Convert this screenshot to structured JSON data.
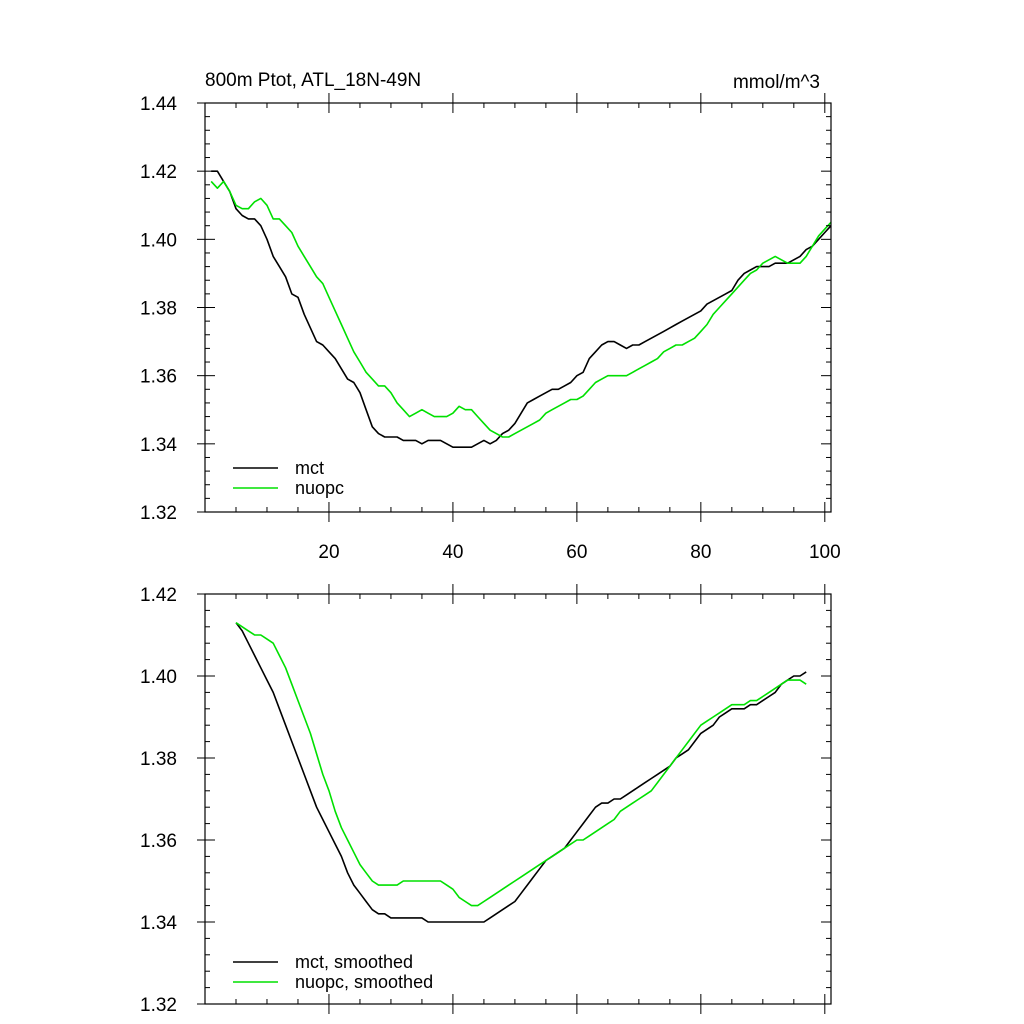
{
  "chart_data": [
    {
      "type": "line",
      "title": "800m Ptot, ATL_18N-49N",
      "units": "mmol/m^3",
      "xlim": [
        0,
        101
      ],
      "ylim": [
        1.32,
        1.44
      ],
      "x_ticks": [
        20,
        40,
        60,
        80,
        100
      ],
      "x_tick_labels": [
        "20",
        "40",
        "60",
        "80",
        "100"
      ],
      "y_ticks": [
        1.32,
        1.34,
        1.36,
        1.38,
        1.4,
        1.42,
        1.44
      ],
      "y_tick_labels": [
        "1.32",
        "1.34",
        "1.36",
        "1.38",
        "1.40",
        "1.42",
        "1.44"
      ],
      "legend_position": "bottom-left",
      "series": [
        {
          "name": "mct",
          "color": "#000000",
          "x": [
            1,
            2,
            3,
            4,
            5,
            6,
            7,
            8,
            9,
            10,
            11,
            12,
            13,
            14,
            15,
            16,
            17,
            18,
            19,
            20,
            21,
            22,
            23,
            24,
            25,
            26,
            27,
            28,
            29,
            30,
            31,
            32,
            33,
            34,
            35,
            36,
            37,
            38,
            39,
            40,
            41,
            42,
            43,
            44,
            45,
            46,
            47,
            48,
            49,
            50,
            51,
            52,
            53,
            54,
            55,
            56,
            57,
            58,
            59,
            60,
            61,
            62,
            63,
            64,
            65,
            66,
            67,
            68,
            69,
            70,
            71,
            72,
            73,
            74,
            75,
            76,
            77,
            78,
            79,
            80,
            81,
            82,
            83,
            84,
            85,
            86,
            87,
            88,
            89,
            90,
            91,
            92,
            93,
            94,
            95,
            96,
            97,
            98,
            99,
            100,
            101
          ],
          "values": [
            1.42,
            1.42,
            1.417,
            1.414,
            1.409,
            1.407,
            1.406,
            1.406,
            1.404,
            1.4,
            1.395,
            1.392,
            1.389,
            1.384,
            1.383,
            1.378,
            1.374,
            1.37,
            1.369,
            1.367,
            1.365,
            1.362,
            1.359,
            1.358,
            1.355,
            1.35,
            1.345,
            1.343,
            1.342,
            1.342,
            1.342,
            1.341,
            1.341,
            1.341,
            1.34,
            1.341,
            1.341,
            1.341,
            1.34,
            1.339,
            1.339,
            1.339,
            1.339,
            1.34,
            1.341,
            1.34,
            1.341,
            1.343,
            1.344,
            1.346,
            1.349,
            1.352,
            1.353,
            1.354,
            1.355,
            1.356,
            1.356,
            1.357,
            1.358,
            1.36,
            1.361,
            1.365,
            1.367,
            1.369,
            1.37,
            1.37,
            1.369,
            1.368,
            1.369,
            1.369,
            1.37,
            1.371,
            1.372,
            1.373,
            1.374,
            1.375,
            1.376,
            1.377,
            1.378,
            1.379,
            1.381,
            1.382,
            1.383,
            1.384,
            1.385,
            1.388,
            1.39,
            1.391,
            1.392,
            1.392,
            1.392,
            1.393,
            1.393,
            1.393,
            1.394,
            1.395,
            1.397,
            1.398,
            1.4,
            1.402,
            1.404
          ]
        },
        {
          "name": "nuopc",
          "color": "#00e000",
          "x": [
            1,
            2,
            3,
            4,
            5,
            6,
            7,
            8,
            9,
            10,
            11,
            12,
            13,
            14,
            15,
            16,
            17,
            18,
            19,
            20,
            21,
            22,
            23,
            24,
            25,
            26,
            27,
            28,
            29,
            30,
            31,
            32,
            33,
            34,
            35,
            36,
            37,
            38,
            39,
            40,
            41,
            42,
            43,
            44,
            45,
            46,
            47,
            48,
            49,
            50,
            51,
            52,
            53,
            54,
            55,
            56,
            57,
            58,
            59,
            60,
            61,
            62,
            63,
            64,
            65,
            66,
            67,
            68,
            69,
            70,
            71,
            72,
            73,
            74,
            75,
            76,
            77,
            78,
            79,
            80,
            81,
            82,
            83,
            84,
            85,
            86,
            87,
            88,
            89,
            90,
            91,
            92,
            93,
            94,
            95,
            96,
            97,
            98,
            99,
            100,
            101
          ],
          "values": [
            1.417,
            1.415,
            1.417,
            1.414,
            1.41,
            1.409,
            1.409,
            1.411,
            1.412,
            1.41,
            1.406,
            1.406,
            1.404,
            1.402,
            1.398,
            1.395,
            1.392,
            1.389,
            1.387,
            1.383,
            1.379,
            1.375,
            1.371,
            1.367,
            1.364,
            1.361,
            1.359,
            1.357,
            1.357,
            1.355,
            1.352,
            1.35,
            1.348,
            1.349,
            1.35,
            1.349,
            1.348,
            1.348,
            1.348,
            1.349,
            1.351,
            1.35,
            1.35,
            1.348,
            1.346,
            1.344,
            1.343,
            1.342,
            1.342,
            1.343,
            1.344,
            1.345,
            1.346,
            1.347,
            1.349,
            1.35,
            1.351,
            1.352,
            1.353,
            1.353,
            1.354,
            1.356,
            1.358,
            1.359,
            1.36,
            1.36,
            1.36,
            1.36,
            1.361,
            1.362,
            1.363,
            1.364,
            1.365,
            1.367,
            1.368,
            1.369,
            1.369,
            1.37,
            1.371,
            1.373,
            1.375,
            1.378,
            1.38,
            1.382,
            1.384,
            1.386,
            1.388,
            1.39,
            1.391,
            1.393,
            1.394,
            1.395,
            1.394,
            1.393,
            1.393,
            1.393,
            1.395,
            1.398,
            1.401,
            1.403,
            1.405
          ]
        }
      ]
    },
    {
      "type": "line",
      "title": "",
      "xlim": [
        0,
        101
      ],
      "ylim": [
        1.32,
        1.42
      ],
      "x_ticks": [
        20,
        40,
        60,
        80,
        100
      ],
      "y_ticks": [
        1.32,
        1.34,
        1.36,
        1.38,
        1.4,
        1.42
      ],
      "y_tick_labels": [
        "1.32",
        "1.34",
        "1.36",
        "1.38",
        "1.40",
        "1.42"
      ],
      "legend_position": "bottom-left",
      "series": [
        {
          "name": "mct, smoothed",
          "color": "#000000",
          "x": [
            5,
            6,
            7,
            8,
            9,
            10,
            11,
            12,
            13,
            14,
            15,
            16,
            17,
            18,
            19,
            20,
            21,
            22,
            23,
            24,
            25,
            26,
            27,
            28,
            29,
            30,
            31,
            32,
            33,
            34,
            35,
            36,
            37,
            38,
            39,
            40,
            41,
            42,
            43,
            44,
            45,
            46,
            47,
            48,
            49,
            50,
            51,
            52,
            53,
            54,
            55,
            56,
            57,
            58,
            59,
            60,
            61,
            62,
            63,
            64,
            65,
            66,
            67,
            68,
            69,
            70,
            71,
            72,
            73,
            74,
            75,
            76,
            77,
            78,
            79,
            80,
            81,
            82,
            83,
            84,
            85,
            86,
            87,
            88,
            89,
            90,
            91,
            92,
            93,
            94,
            95,
            96,
            97
          ],
          "values": [
            1.413,
            1.411,
            1.408,
            1.405,
            1.402,
            1.399,
            1.396,
            1.392,
            1.388,
            1.384,
            1.38,
            1.376,
            1.372,
            1.368,
            1.365,
            1.362,
            1.359,
            1.356,
            1.352,
            1.349,
            1.347,
            1.345,
            1.343,
            1.342,
            1.342,
            1.341,
            1.341,
            1.341,
            1.341,
            1.341,
            1.341,
            1.34,
            1.34,
            1.34,
            1.34,
            1.34,
            1.34,
            1.34,
            1.34,
            1.34,
            1.34,
            1.341,
            1.342,
            1.343,
            1.344,
            1.345,
            1.347,
            1.349,
            1.351,
            1.353,
            1.355,
            1.356,
            1.357,
            1.358,
            1.36,
            1.362,
            1.364,
            1.366,
            1.368,
            1.369,
            1.369,
            1.37,
            1.37,
            1.371,
            1.372,
            1.373,
            1.374,
            1.375,
            1.376,
            1.377,
            1.378,
            1.38,
            1.381,
            1.382,
            1.384,
            1.386,
            1.387,
            1.388,
            1.39,
            1.391,
            1.392,
            1.392,
            1.392,
            1.393,
            1.393,
            1.394,
            1.395,
            1.396,
            1.398,
            1.399,
            1.4,
            1.4,
            1.401
          ]
        },
        {
          "name": "nuopc, smoothed",
          "color": "#00e000",
          "x": [
            5,
            6,
            7,
            8,
            9,
            10,
            11,
            12,
            13,
            14,
            15,
            16,
            17,
            18,
            19,
            20,
            21,
            22,
            23,
            24,
            25,
            26,
            27,
            28,
            29,
            30,
            31,
            32,
            33,
            34,
            35,
            36,
            37,
            38,
            39,
            40,
            41,
            42,
            43,
            44,
            45,
            46,
            47,
            48,
            49,
            50,
            51,
            52,
            53,
            54,
            55,
            56,
            57,
            58,
            59,
            60,
            61,
            62,
            63,
            64,
            65,
            66,
            67,
            68,
            69,
            70,
            71,
            72,
            73,
            74,
            75,
            76,
            77,
            78,
            79,
            80,
            81,
            82,
            83,
            84,
            85,
            86,
            87,
            88,
            89,
            90,
            91,
            92,
            93,
            94,
            95,
            96,
            97
          ],
          "values": [
            1.413,
            1.412,
            1.411,
            1.41,
            1.41,
            1.409,
            1.408,
            1.405,
            1.402,
            1.398,
            1.394,
            1.39,
            1.386,
            1.381,
            1.376,
            1.372,
            1.367,
            1.363,
            1.36,
            1.357,
            1.354,
            1.352,
            1.35,
            1.349,
            1.349,
            1.349,
            1.349,
            1.35,
            1.35,
            1.35,
            1.35,
            1.35,
            1.35,
            1.35,
            1.349,
            1.348,
            1.346,
            1.345,
            1.344,
            1.344,
            1.345,
            1.346,
            1.347,
            1.348,
            1.349,
            1.35,
            1.351,
            1.352,
            1.353,
            1.354,
            1.355,
            1.356,
            1.357,
            1.358,
            1.359,
            1.36,
            1.36,
            1.361,
            1.362,
            1.363,
            1.364,
            1.365,
            1.367,
            1.368,
            1.369,
            1.37,
            1.371,
            1.372,
            1.374,
            1.376,
            1.378,
            1.38,
            1.382,
            1.384,
            1.386,
            1.388,
            1.389,
            1.39,
            1.391,
            1.392,
            1.393,
            1.393,
            1.393,
            1.394,
            1.394,
            1.395,
            1.396,
            1.397,
            1.398,
            1.399,
            1.399,
            1.399,
            1.398
          ]
        }
      ]
    }
  ]
}
